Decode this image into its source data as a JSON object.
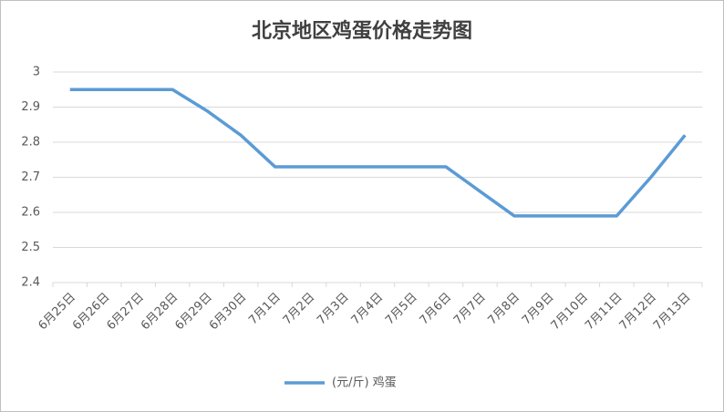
{
  "chart_data": {
    "type": "line",
    "title": "北京地区鸡蛋价格走势图",
    "categories": [
      "6月25日",
      "6月26日",
      "6月27日",
      "6月28日",
      "6月29日",
      "6月30日",
      "7月1日",
      "7月2日",
      "7月3日",
      "7月4日",
      "7月5日",
      "7月6日",
      "7月7日",
      "7月8日",
      "7月9日",
      "7月10日",
      "7月11日",
      "7月12日",
      "7月13日"
    ],
    "series": [
      {
        "name": "(元/斤) 鸡蛋",
        "color": "#5b9bd5",
        "values": [
          2.95,
          2.95,
          2.95,
          2.95,
          2.89,
          2.82,
          2.73,
          2.73,
          2.73,
          2.73,
          2.73,
          2.73,
          2.66,
          2.59,
          2.59,
          2.59,
          2.59,
          2.7,
          2.82
        ]
      }
    ],
    "ylim": [
      2.4,
      3
    ],
    "yticks": [
      2.4,
      2.5,
      2.6,
      2.7,
      2.8,
      2.9,
      3
    ],
    "grid": true,
    "legend": "bottom"
  }
}
